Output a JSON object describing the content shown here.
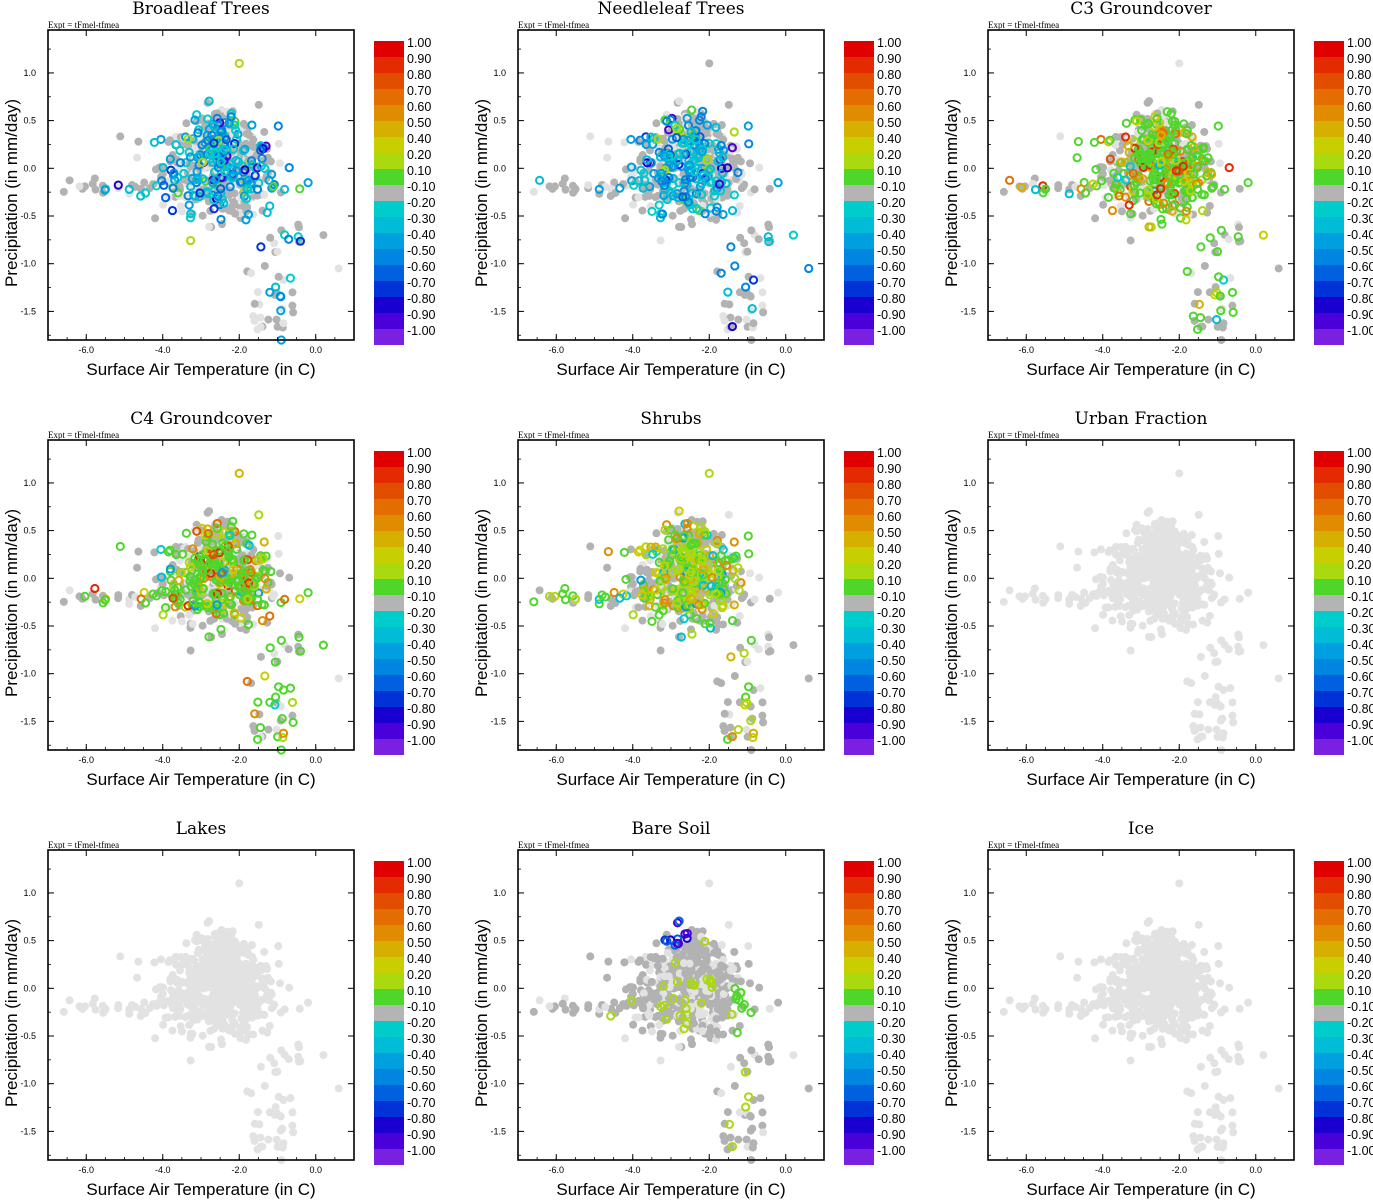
{
  "figure": {
    "xlabel": "Surface Air Temperature (in C)",
    "ylabel": "Precipitation (in mm/day)",
    "expt_label": "Expt = tFmel-tfmea",
    "x_ticks": [
      "-6.0",
      "-4.0",
      "-2.0",
      "0.0"
    ],
    "x_tick_values": [
      -6,
      -4,
      -2,
      0
    ],
    "y_ticks": [
      "1.0",
      "0.5",
      "0.0",
      "-0.5",
      "-1.0",
      "-1.5"
    ],
    "y_tick_values": [
      1.0,
      0.5,
      0.0,
      -0.5,
      -1.0,
      -1.5
    ],
    "xlim": [
      -7.0,
      1.0
    ],
    "ylim": [
      -1.8,
      1.45
    ],
    "colorbar": {
      "labels": [
        "1.00",
        "0.90",
        "0.80",
        "0.70",
        "0.60",
        "0.50",
        "0.40",
        "0.20",
        "0.10",
        "-0.10",
        "-0.20",
        "-0.30",
        "-0.40",
        "-0.50",
        "-0.60",
        "-0.70",
        "-0.80",
        "-0.90",
        "-1.00"
      ],
      "colors": [
        "#e00000",
        "#e32a00",
        "#e14e00",
        "#e36d00",
        "#e08c00",
        "#d6b000",
        "#c8cf00",
        "#a9d90e",
        "#4fd62a",
        "#b4b4b4",
        "#00cccc",
        "#00bcd6",
        "#00a0e0",
        "#0085e0",
        "#0060e0",
        "#0032d8",
        "#1a00d0",
        "#4a00d8",
        "#7a20e0"
      ]
    },
    "colors": {
      "neutral": "#b0b0b0",
      "background_points": "#e2e2e2",
      "gray_points": "#b2b2b2"
    }
  },
  "chart_data": [
    {
      "type": "scatter",
      "title": "Broadleaf Trees",
      "mode": "cool",
      "x_range": [
        -7.0,
        1.0
      ],
      "y_range": [
        -1.8,
        1.45
      ]
    },
    {
      "type": "scatter",
      "title": "Needleleaf Trees",
      "mode": "cool",
      "x_range": [
        -7.0,
        1.0
      ],
      "y_range": [
        -1.8,
        1.45
      ]
    },
    {
      "type": "scatter",
      "title": "C3 Groundcover",
      "mode": "warm",
      "x_range": [
        -7.0,
        1.0
      ],
      "y_range": [
        -1.8,
        1.45
      ]
    },
    {
      "type": "scatter",
      "title": "C4 Groundcover",
      "mode": "warm",
      "x_range": [
        -7.0,
        1.0
      ],
      "y_range": [
        -1.8,
        1.45
      ]
    },
    {
      "type": "scatter",
      "title": "Shrubs",
      "mode": "mixed",
      "x_range": [
        -7.0,
        1.0
      ],
      "y_range": [
        -1.8,
        1.45
      ]
    },
    {
      "type": "scatter",
      "title": "Urban Fraction",
      "mode": "none",
      "x_range": [
        -7.0,
        1.0
      ],
      "y_range": [
        -1.8,
        1.45
      ]
    },
    {
      "type": "scatter",
      "title": "Lakes",
      "mode": "none",
      "x_range": [
        -7.0,
        1.0
      ],
      "y_range": [
        -1.8,
        1.45
      ]
    },
    {
      "type": "scatter",
      "title": "Bare Soil",
      "mode": "sparse",
      "x_range": [
        -7.0,
        1.0
      ],
      "y_range": [
        -1.8,
        1.45
      ]
    },
    {
      "type": "scatter",
      "title": "Ice",
      "mode": "none",
      "x_range": [
        -7.0,
        1.0
      ],
      "y_range": [
        -1.8,
        1.45
      ]
    }
  ]
}
